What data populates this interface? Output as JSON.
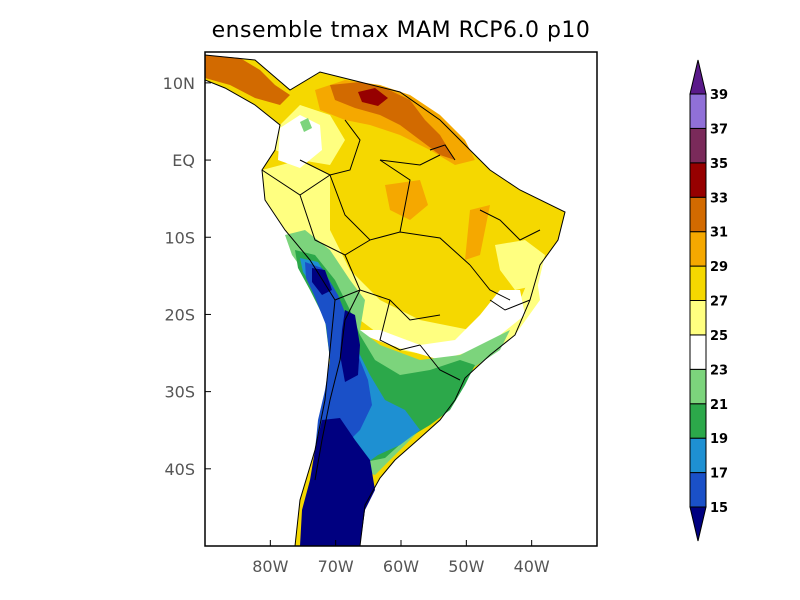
{
  "title": "ensemble tmax MAM RCP6.0 p10",
  "map": {
    "region": "South America",
    "lat_ticks": [
      {
        "label": "10N",
        "lat": 10
      },
      {
        "label": "EQ",
        "lat": 0
      },
      {
        "label": "10S",
        "lat": -10
      },
      {
        "label": "20S",
        "lat": -20
      },
      {
        "label": "30S",
        "lat": -30
      },
      {
        "label": "40S",
        "lat": -40
      }
    ],
    "lon_ticks": [
      {
        "label": "80W",
        "lon": -80
      },
      {
        "label": "70W",
        "lon": -70
      },
      {
        "label": "60W",
        "lon": -60
      },
      {
        "label": "50W",
        "lon": -50
      },
      {
        "label": "40W",
        "lon": -40
      }
    ],
    "lon_range": [
      -90,
      -30
    ],
    "lat_range": [
      -50,
      14
    ]
  },
  "colorbar": {
    "levels": [
      "15",
      "17",
      "19",
      "21",
      "23",
      "25",
      "27",
      "29",
      "31",
      "33",
      "35",
      "37",
      "39"
    ],
    "colors": [
      "#1a50c8",
      "#1e90d2",
      "#2ca84a",
      "#7cd47c",
      "#ffffff",
      "#ffff80",
      "#f5d800",
      "#f5a800",
      "#d26a00",
      "#960000",
      "#7a2a5a",
      "#9070d8"
    ],
    "below_color": "#000080",
    "above_color": "#5a1a8a"
  }
}
